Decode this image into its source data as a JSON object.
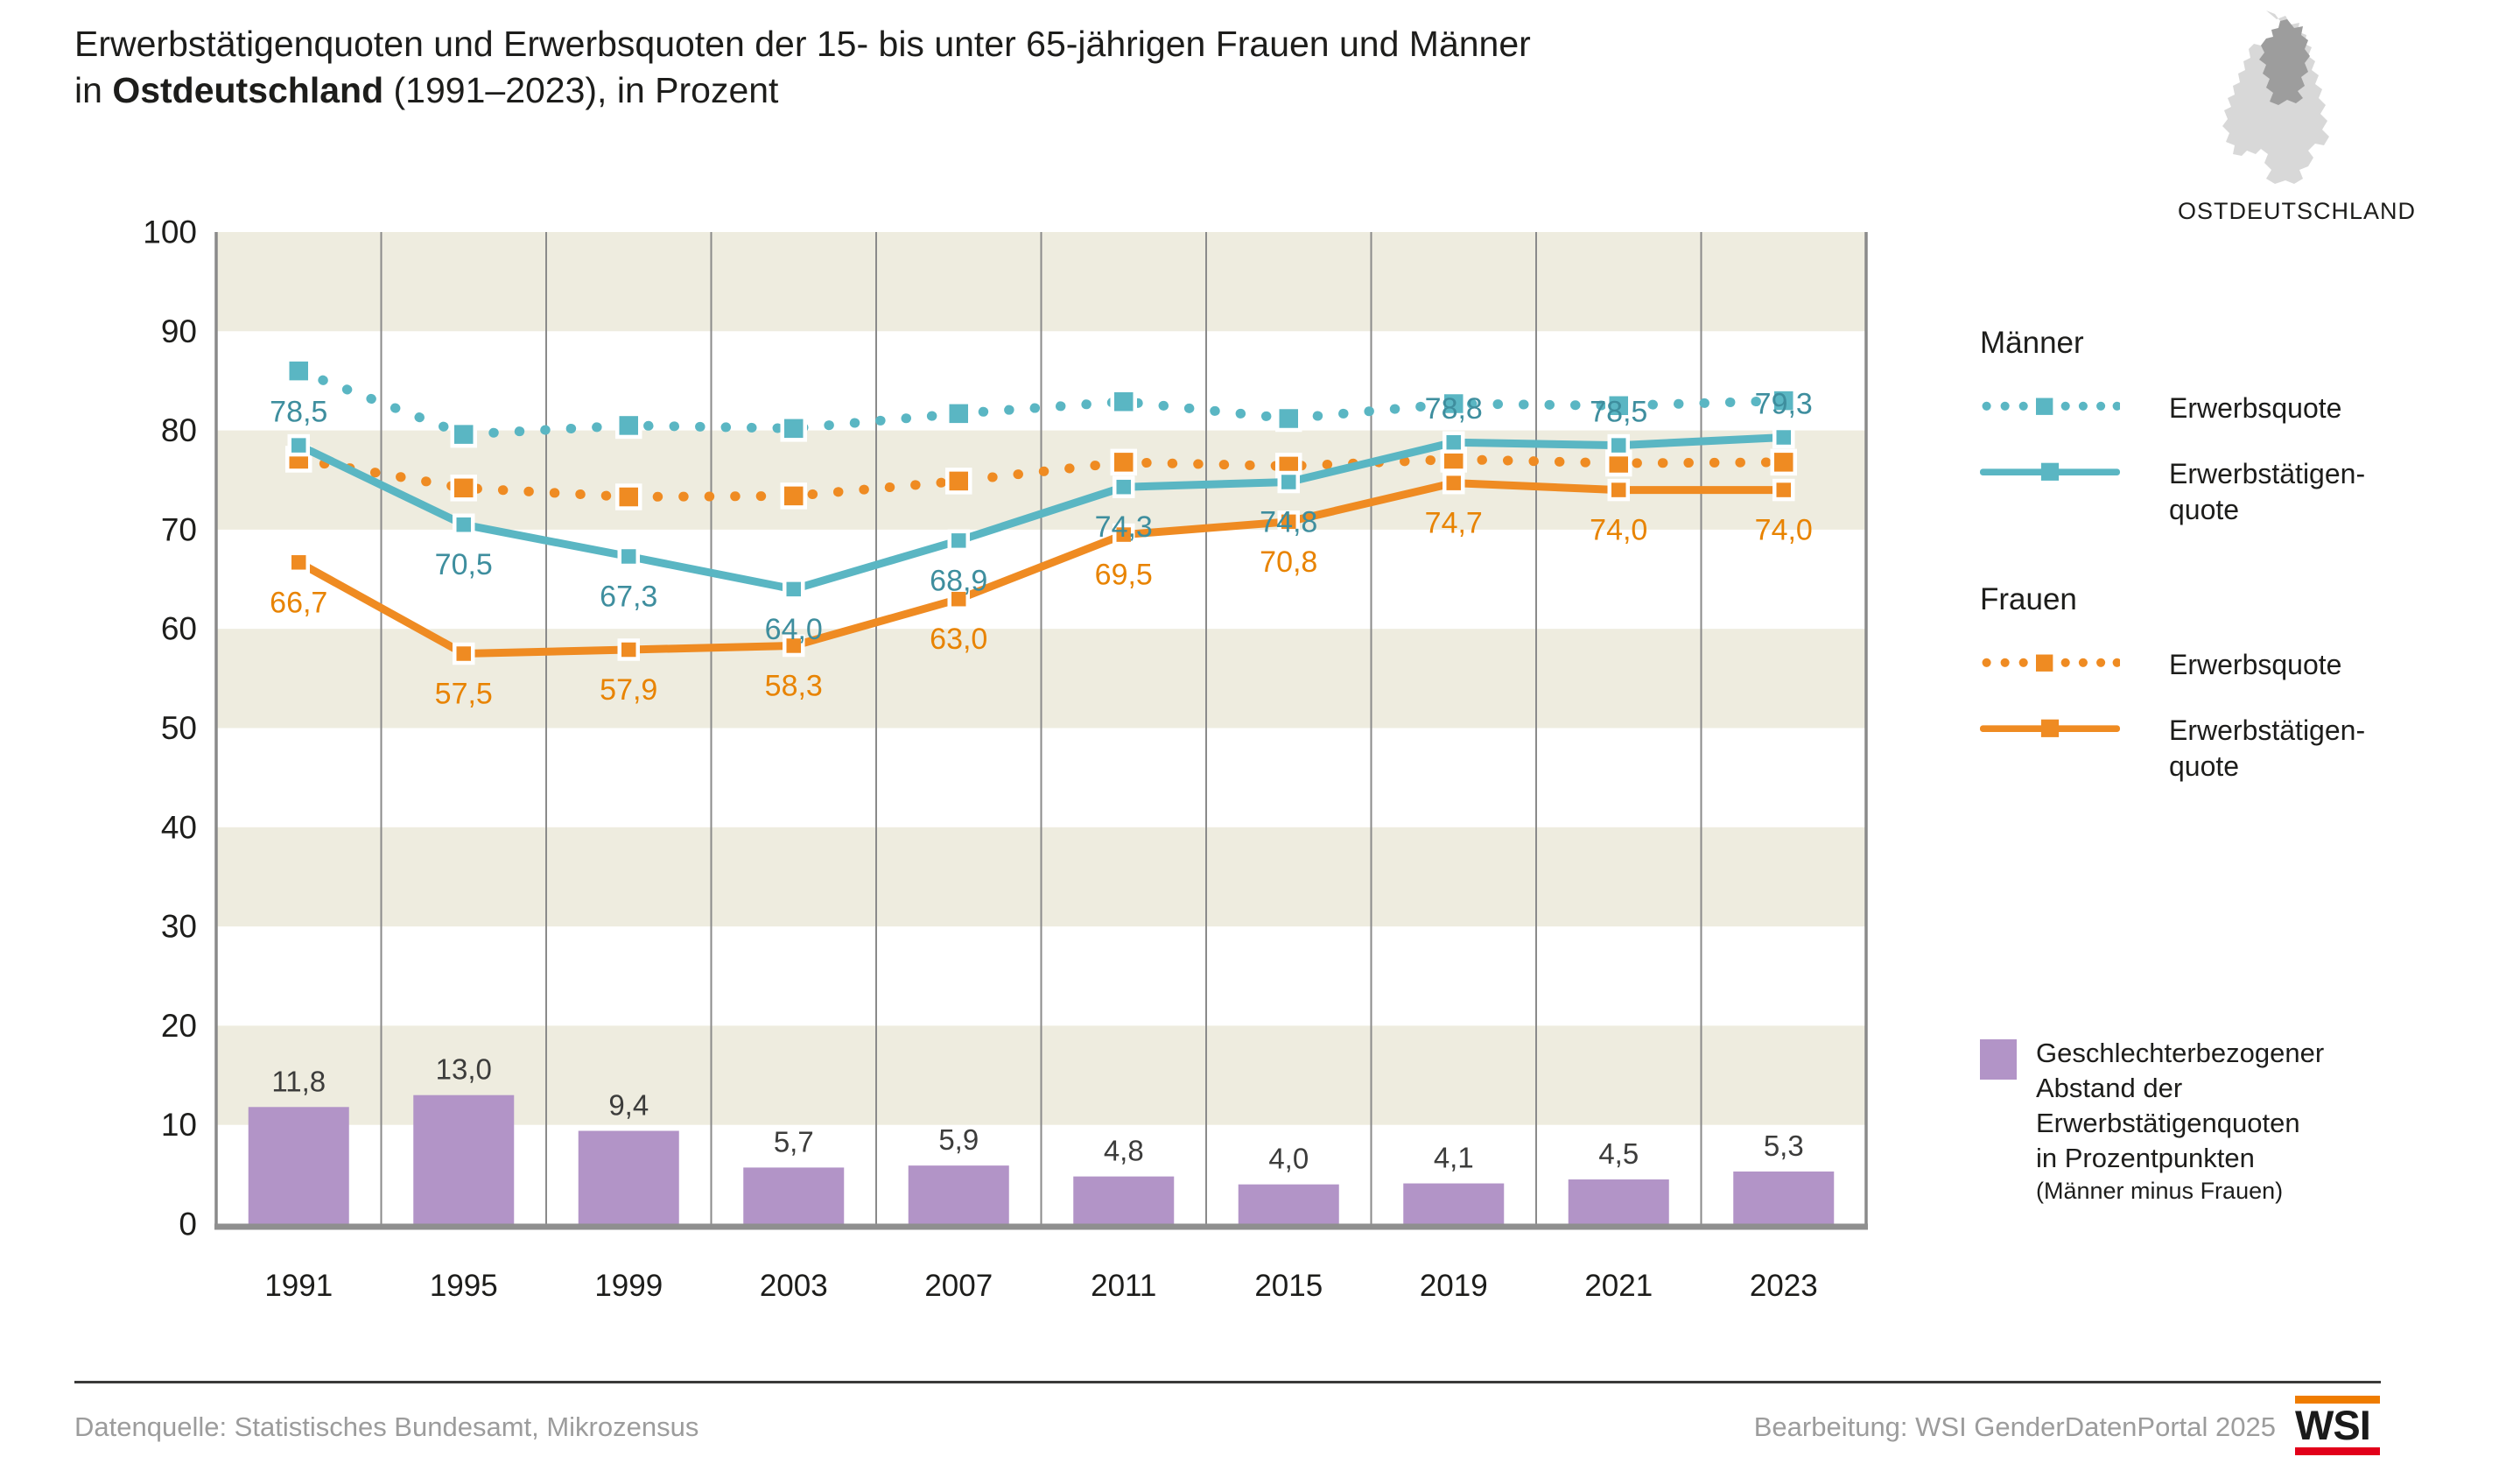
{
  "title": {
    "line1": "Erwerbstätigenquoten und Erwerbsquoten der 15- bis unter 65-jährigen Frauen und Männer",
    "line2_pre": "in ",
    "line2_bold": "Ostdeutschland",
    "line2_post": " (1991–2023), in Prozent"
  },
  "map": {
    "label": "OSTDEUTSCHLAND"
  },
  "legend": {
    "maenner_heading": "Männer",
    "frauen_heading": "Frauen",
    "erwerbsquote_label": "Erwerbsquote",
    "erwerbstaetigenquote_line1": "Erwerbstätigen-",
    "erwerbstaetigenquote_line2": "quote",
    "gap_line1": "Geschlechterbezogener",
    "gap_line2": "Abstand der",
    "gap_line3": "Erwerbstätigenquoten",
    "gap_line4": "in Prozentpunkten",
    "gap_note": "(Männer minus Frauen)"
  },
  "colors": {
    "teal": "#5ab6c3",
    "teal_text": "#3e8e9e",
    "orange": "#ef8b22",
    "orange_text": "#e88300",
    "purple": "#b294c7",
    "beige_band": "#eeecdf",
    "grid": "#8a8a8a",
    "zero_line": "#8f8f8f",
    "tick_text": "#1d1d1b",
    "bar_label_text": "#3c3c3b",
    "map_west": "#d8d8d8",
    "map_east": "#9d9d9d",
    "logo_orange": "#ef7c00",
    "logo_red": "#e2001a"
  },
  "chart_data": {
    "type": "line",
    "categories": [
      "1991",
      "1995",
      "1999",
      "2003",
      "2007",
      "2011",
      "2015",
      "2019",
      "2021",
      "2023"
    ],
    "ylim": [
      0,
      100
    ],
    "yticks": [
      0,
      10,
      20,
      30,
      40,
      50,
      60,
      70,
      80,
      90,
      100
    ],
    "beige_bands": [
      [
        90,
        100
      ],
      [
        70,
        80
      ],
      [
        50,
        60
      ],
      [
        30,
        40
      ],
      [
        10,
        20
      ]
    ],
    "grid": "vertical-between-categories",
    "legend_position": "right",
    "series": [
      {
        "name": "Männer Erwerbsquote",
        "group": "Männer",
        "style": "dotted",
        "color_key": "teal",
        "values": [
          86.0,
          79.6,
          80.5,
          80.2,
          81.7,
          82.9,
          81.2,
          82.7,
          82.5,
          83.0
        ],
        "labels": null,
        "note": "values estimated from pixels, not labeled in chart"
      },
      {
        "name": "Männer Erwerbstätigenquote",
        "group": "Männer",
        "style": "solid",
        "color_key": "teal",
        "values": [
          78.5,
          70.5,
          67.3,
          64.0,
          68.9,
          74.3,
          74.8,
          78.8,
          78.5,
          79.3
        ],
        "labels": [
          "78,5",
          "70,5",
          "67,3",
          "64,0",
          "68,9",
          "74,3",
          "74,8",
          "78,8",
          "78,5",
          "79,3"
        ],
        "label_above_indices": [
          0,
          7,
          8,
          9
        ]
      },
      {
        "name": "Frauen Erwerbsquote",
        "group": "Frauen",
        "style": "dotted",
        "color_key": "orange",
        "values": [
          77.1,
          74.2,
          73.3,
          73.4,
          74.9,
          76.8,
          76.4,
          77.1,
          76.7,
          76.8
        ],
        "labels": null,
        "note": "values estimated from pixels, not labeled in chart"
      },
      {
        "name": "Frauen Erwerbstätigenquote",
        "group": "Frauen",
        "style": "solid",
        "color_key": "orange",
        "values": [
          66.7,
          57.5,
          57.9,
          58.3,
          63.0,
          69.5,
          70.8,
          74.7,
          74.0,
          74.0
        ],
        "labels": [
          "66,7",
          "57,5",
          "57,9",
          "58,3",
          "63,0",
          "69,5",
          "70,8",
          "74,7",
          "74,0",
          "74,0"
        ],
        "label_above_indices": []
      }
    ],
    "bars": {
      "name": "Geschlechterbezogener Abstand der Erwerbstätigenquoten in Prozentpunkten (Männer minus Frauen)",
      "color_key": "purple",
      "values": [
        11.8,
        13.0,
        9.4,
        5.7,
        5.9,
        4.8,
        4.0,
        4.1,
        4.5,
        5.3
      ],
      "labels": [
        "11,8",
        "13,0",
        "9,4",
        "5,7",
        "5,9",
        "4,8",
        "4,0",
        "4,1",
        "4,5",
        "5,3"
      ]
    }
  },
  "footer": {
    "source": "Datenquelle: Statistisches Bundesamt, Mikrozensus",
    "editing": "Bearbeitung: WSI GenderDatenPortal 2025",
    "logo_text": "WSI"
  }
}
